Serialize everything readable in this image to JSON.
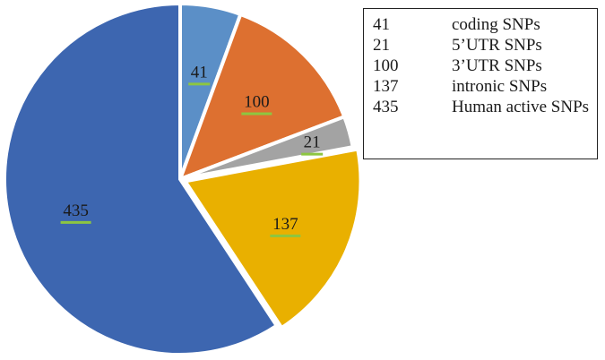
{
  "chart_data": {
    "type": "pie",
    "slices": [
      {
        "value": 41,
        "label": "41",
        "color": "#5b8fc7"
      },
      {
        "value": 100,
        "label": "100",
        "color": "#dd7030"
      },
      {
        "value": 21,
        "label": "21",
        "color": "#a3a3a3"
      },
      {
        "value": 137,
        "label": "137",
        "color": "#e9b000"
      },
      {
        "value": 435,
        "label": "435",
        "color": "#3d66b0"
      }
    ],
    "legend": {
      "placement": "top-right",
      "entries": [
        {
          "value": "41",
          "name": "coding SNPs"
        },
        {
          "value": "21",
          "name": "5’UTR SNPs"
        },
        {
          "value": "100",
          "name": "3’UTR SNPs"
        },
        {
          "value": "137",
          "name": "intronic SNPs"
        },
        {
          "value": "435",
          "name": "Human active SNPs"
        }
      ]
    },
    "label_underline_color": "#8dc641"
  }
}
